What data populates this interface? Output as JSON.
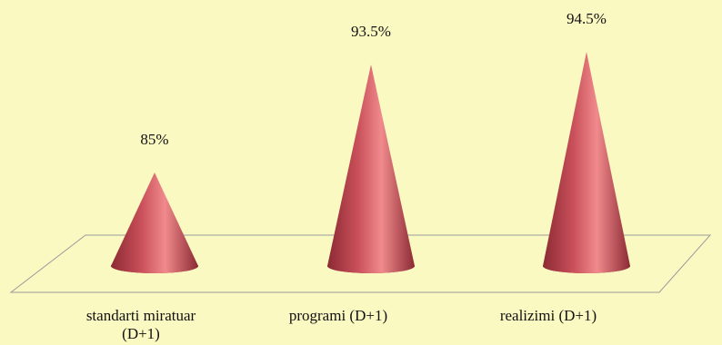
{
  "chart_data": {
    "type": "bar",
    "shape": "cone",
    "categories": [
      "standarti miratuar (D+1)",
      "programi  (D+1)",
      "realizimi  (D+1)"
    ],
    "category_lines": [
      [
        "standarti miratuar",
        "(D+1)"
      ],
      [
        "programi  (D+1)"
      ],
      [
        "realizimi  (D+1)"
      ]
    ],
    "values": [
      85,
      93.5,
      94.5
    ],
    "data_labels": [
      "85%",
      "93.5%",
      "94.5%"
    ],
    "ylim": [
      80,
      95
    ],
    "grid": false,
    "legend": "none",
    "title": "",
    "xlabel": "",
    "ylabel": "",
    "colors": {
      "background": "#fbf9c2",
      "floor_line": "#9a9a9a",
      "cone_dark": "#8c2a34",
      "cone_mid": "#c9505a",
      "cone_light": "#f08a8c"
    }
  }
}
